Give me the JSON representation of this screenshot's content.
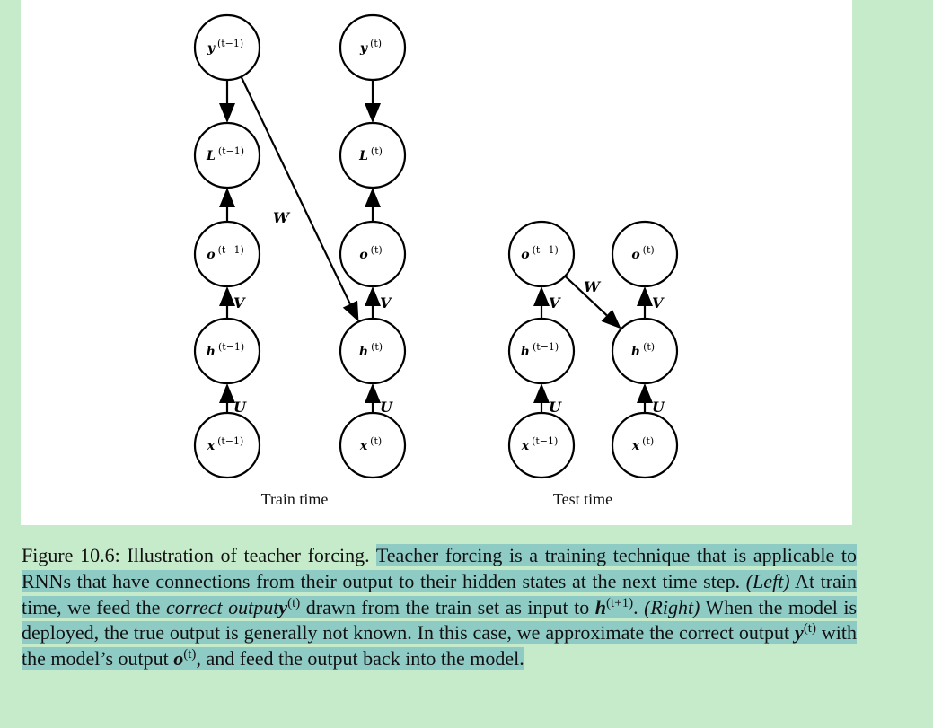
{
  "figure": {
    "left_label": "Train time",
    "right_label": "Test time",
    "train_nodes": [
      {
        "id": "y_tm1",
        "base": "y",
        "sup": "(t−1)"
      },
      {
        "id": "L_tm1",
        "base": "L",
        "sup": "(t−1)"
      },
      {
        "id": "o_tm1",
        "base": "o",
        "sup": "(t−1)"
      },
      {
        "id": "h_tm1",
        "base": "h",
        "sup": "(t−1)"
      },
      {
        "id": "x_tm1",
        "base": "x",
        "sup": "(t−1)"
      },
      {
        "id": "y_t",
        "base": "y",
        "sup": "(t)"
      },
      {
        "id": "L_t",
        "base": "L",
        "sup": "(t)"
      },
      {
        "id": "o_t",
        "base": "o",
        "sup": "(t)"
      },
      {
        "id": "h_t",
        "base": "h",
        "sup": "(t)"
      },
      {
        "id": "x_t",
        "base": "x",
        "sup": "(t)"
      }
    ],
    "test_nodes": [
      {
        "id": "o_tm1",
        "base": "o",
        "sup": "(t−1)"
      },
      {
        "id": "h_tm1",
        "base": "h",
        "sup": "(t−1)"
      },
      {
        "id": "x_tm1",
        "base": "x",
        "sup": "(t−1)"
      },
      {
        "id": "o_t",
        "base": "o",
        "sup": "(t)"
      },
      {
        "id": "h_t",
        "base": "h",
        "sup": "(t)"
      },
      {
        "id": "x_t",
        "base": "x",
        "sup": "(t)"
      }
    ],
    "edge_labels": {
      "W": "W",
      "V": "V",
      "U": "U"
    }
  },
  "caption": {
    "lead": "Figure 10.6:  Illustration of teacher forcing. ",
    "s1": "Teacher forcing is a training technique that is applicable to RNNs that have connections from their output to their hidden states at the next time step. ",
    "left_tag": "(Left)",
    "s2": " At train time, we feed the ",
    "correct_output": "correct output",
    "y": "y",
    "t_sup": "(t)",
    "s3": " drawn from the train set as input to ",
    "h": "h",
    "t1_sup": "(t+1)",
    "s4": ". ",
    "right_tag": "(Right)",
    "s5": " When the model is deployed, the true output is generally not known. In this case, we approximate the correct output ",
    "s6": " with the model’s output ",
    "o": "o",
    "s7": ", and feed the output back into the model."
  }
}
